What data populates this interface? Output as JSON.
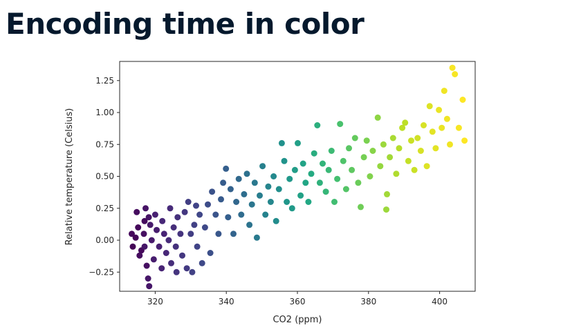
{
  "slide": {
    "title": "Encoding time in color"
  },
  "chart_data": {
    "type": "scatter",
    "title": "",
    "xlabel": "CO2 (ppm)",
    "ylabel": "Relative temperature (Celsius)",
    "xlim": [
      310,
      410
    ],
    "ylim": [
      -0.4,
      1.4
    ],
    "xticks": [
      320,
      340,
      360,
      380,
      400
    ],
    "yticks": [
      -0.25,
      0.0,
      0.25,
      0.5,
      0.75,
      1.0,
      1.25
    ],
    "grid": false,
    "legend": "none",
    "color_encoding": "time (viridis colormap, dark purple = earliest, yellow = latest)",
    "colormap": [
      "#440154",
      "#482475",
      "#414487",
      "#355f8d",
      "#2a788e",
      "#21918c",
      "#22a884",
      "#44bf70",
      "#7ad151",
      "#bddf26",
      "#fde725"
    ],
    "series": [
      {
        "points": [
          {
            "x": 313.7,
            "y": -0.05,
            "t": 0.01
          },
          {
            "x": 314.5,
            "y": 0.02,
            "t": 0.01
          },
          {
            "x": 315.2,
            "y": 0.1,
            "t": 0.02
          },
          {
            "x": 313.4,
            "y": 0.05,
            "t": 0.02
          },
          {
            "x": 316.1,
            "y": -0.08,
            "t": 0.02
          },
          {
            "x": 317.0,
            "y": 0.15,
            "t": 0.03
          },
          {
            "x": 315.6,
            "y": -0.12,
            "t": 0.03
          },
          {
            "x": 314.8,
            "y": 0.22,
            "t": 0.03
          },
          {
            "x": 316.8,
            "y": 0.05,
            "t": 0.04
          },
          {
            "x": 317.6,
            "y": -0.2,
            "t": 0.04
          },
          {
            "x": 318.2,
            "y": 0.18,
            "t": 0.05
          },
          {
            "x": 317.3,
            "y": 0.25,
            "t": 0.05
          },
          {
            "x": 318.0,
            "y": -0.3,
            "t": 0.06
          },
          {
            "x": 318.3,
            "y": -0.36,
            "t": 0.06
          },
          {
            "x": 317.0,
            "y": -0.05,
            "t": 0.06
          },
          {
            "x": 319.0,
            "y": 0.0,
            "t": 0.07
          },
          {
            "x": 318.6,
            "y": 0.12,
            "t": 0.07
          },
          {
            "x": 319.6,
            "y": -0.15,
            "t": 0.08
          },
          {
            "x": 320.4,
            "y": 0.08,
            "t": 0.08
          },
          {
            "x": 321.1,
            "y": -0.05,
            "t": 0.09
          },
          {
            "x": 320.0,
            "y": 0.2,
            "t": 0.09
          },
          {
            "x": 321.8,
            "y": -0.22,
            "t": 0.1
          },
          {
            "x": 322.5,
            "y": 0.05,
            "t": 0.1
          },
          {
            "x": 322.0,
            "y": 0.15,
            "t": 0.11
          },
          {
            "x": 323.1,
            "y": -0.1,
            "t": 0.11
          },
          {
            "x": 323.8,
            "y": 0.0,
            "t": 0.12
          },
          {
            "x": 324.2,
            "y": 0.25,
            "t": 0.12
          },
          {
            "x": 324.5,
            "y": -0.18,
            "t": 0.13
          },
          {
            "x": 325.2,
            "y": 0.1,
            "t": 0.13
          },
          {
            "x": 325.8,
            "y": -0.05,
            "t": 0.14
          },
          {
            "x": 326.3,
            "y": 0.18,
            "t": 0.14
          },
          {
            "x": 326.0,
            "y": -0.25,
            "t": 0.15
          },
          {
            "x": 327.1,
            "y": 0.05,
            "t": 0.15
          },
          {
            "x": 327.6,
            "y": -0.12,
            "t": 0.16
          },
          {
            "x": 328.3,
            "y": 0.22,
            "t": 0.16
          },
          {
            "x": 328.9,
            "y": -0.22,
            "t": 0.17
          },
          {
            "x": 329.3,
            "y": 0.3,
            "t": 0.18
          },
          {
            "x": 330.0,
            "y": 0.05,
            "t": 0.18
          },
          {
            "x": 330.4,
            "y": -0.25,
            "t": 0.19
          },
          {
            "x": 331.0,
            "y": 0.12,
            "t": 0.19
          },
          {
            "x": 331.5,
            "y": 0.27,
            "t": 0.2
          },
          {
            "x": 331.8,
            "y": -0.05,
            "t": 0.2
          },
          {
            "x": 332.5,
            "y": 0.2,
            "t": 0.21
          },
          {
            "x": 333.2,
            "y": -0.18,
            "t": 0.22
          },
          {
            "x": 334.0,
            "y": 0.1,
            "t": 0.22
          },
          {
            "x": 334.8,
            "y": 0.28,
            "t": 0.23
          },
          {
            "x": 335.5,
            "y": -0.1,
            "t": 0.24
          },
          {
            "x": 336.0,
            "y": 0.38,
            "t": 0.25
          },
          {
            "x": 337.0,
            "y": 0.2,
            "t": 0.26
          },
          {
            "x": 337.8,
            "y": 0.05,
            "t": 0.27
          },
          {
            "x": 338.5,
            "y": 0.32,
            "t": 0.28
          },
          {
            "x": 339.1,
            "y": 0.45,
            "t": 0.29
          },
          {
            "x": 339.9,
            "y": 0.56,
            "t": 0.3
          },
          {
            "x": 340.5,
            "y": 0.18,
            "t": 0.3
          },
          {
            "x": 341.2,
            "y": 0.4,
            "t": 0.31
          },
          {
            "x": 342.0,
            "y": 0.05,
            "t": 0.32
          },
          {
            "x": 342.8,
            "y": 0.3,
            "t": 0.33
          },
          {
            "x": 343.5,
            "y": 0.48,
            "t": 0.34
          },
          {
            "x": 344.2,
            "y": 0.2,
            "t": 0.35
          },
          {
            "x": 345.0,
            "y": 0.36,
            "t": 0.36
          },
          {
            "x": 345.8,
            "y": 0.52,
            "t": 0.37
          },
          {
            "x": 346.5,
            "y": 0.12,
            "t": 0.38
          },
          {
            "x": 347.2,
            "y": 0.28,
            "t": 0.39
          },
          {
            "x": 348.0,
            "y": 0.45,
            "t": 0.4
          },
          {
            "x": 348.6,
            "y": 0.02,
            "t": 0.41
          },
          {
            "x": 349.4,
            "y": 0.35,
            "t": 0.42
          },
          {
            "x": 350.2,
            "y": 0.58,
            "t": 0.43
          },
          {
            "x": 351.0,
            "y": 0.2,
            "t": 0.44
          },
          {
            "x": 351.8,
            "y": 0.42,
            "t": 0.45
          },
          {
            "x": 352.5,
            "y": 0.3,
            "t": 0.46
          },
          {
            "x": 353.3,
            "y": 0.5,
            "t": 0.47
          },
          {
            "x": 354.0,
            "y": 0.15,
            "t": 0.48
          },
          {
            "x": 354.8,
            "y": 0.4,
            "t": 0.49
          },
          {
            "x": 355.6,
            "y": 0.76,
            "t": 0.5
          },
          {
            "x": 356.3,
            "y": 0.62,
            "t": 0.51
          },
          {
            "x": 357.0,
            "y": 0.3,
            "t": 0.52
          },
          {
            "x": 357.8,
            "y": 0.48,
            "t": 0.53
          },
          {
            "x": 358.5,
            "y": 0.25,
            "t": 0.54
          },
          {
            "x": 359.3,
            "y": 0.55,
            "t": 0.55
          },
          {
            "x": 360.1,
            "y": 0.76,
            "t": 0.56
          },
          {
            "x": 360.9,
            "y": 0.35,
            "t": 0.57
          },
          {
            "x": 361.6,
            "y": 0.6,
            "t": 0.58
          },
          {
            "x": 362.3,
            "y": 0.45,
            "t": 0.59
          },
          {
            "x": 363.1,
            "y": 0.3,
            "t": 0.6
          },
          {
            "x": 363.9,
            "y": 0.52,
            "t": 0.61
          },
          {
            "x": 364.7,
            "y": 0.68,
            "t": 0.62
          },
          {
            "x": 365.6,
            "y": 0.9,
            "t": 0.63
          },
          {
            "x": 366.3,
            "y": 0.45,
            "t": 0.64
          },
          {
            "x": 367.1,
            "y": 0.6,
            "t": 0.65
          },
          {
            "x": 368.0,
            "y": 0.38,
            "t": 0.66
          },
          {
            "x": 368.8,
            "y": 0.55,
            "t": 0.67
          },
          {
            "x": 369.6,
            "y": 0.7,
            "t": 0.68
          },
          {
            "x": 370.4,
            "y": 0.3,
            "t": 0.69
          },
          {
            "x": 371.2,
            "y": 0.48,
            "t": 0.7
          },
          {
            "x": 372.0,
            "y": 0.91,
            "t": 0.71
          },
          {
            "x": 372.9,
            "y": 0.62,
            "t": 0.72
          },
          {
            "x": 373.7,
            "y": 0.4,
            "t": 0.73
          },
          {
            "x": 374.5,
            "y": 0.72,
            "t": 0.74
          },
          {
            "x": 375.3,
            "y": 0.55,
            "t": 0.75
          },
          {
            "x": 376.2,
            "y": 0.8,
            "t": 0.76
          },
          {
            "x": 377.1,
            "y": 0.45,
            "t": 0.77
          },
          {
            "x": 377.8,
            "y": 0.26,
            "t": 0.78
          },
          {
            "x": 378.7,
            "y": 0.65,
            "t": 0.79
          },
          {
            "x": 379.5,
            "y": 0.78,
            "t": 0.8
          },
          {
            "x": 380.4,
            "y": 0.5,
            "t": 0.81
          },
          {
            "x": 381.2,
            "y": 0.7,
            "t": 0.82
          },
          {
            "x": 382.6,
            "y": 0.96,
            "t": 0.83
          },
          {
            "x": 383.3,
            "y": 0.58,
            "t": 0.84
          },
          {
            "x": 384.2,
            "y": 0.75,
            "t": 0.85
          },
          {
            "x": 385.0,
            "y": 0.24,
            "t": 0.85
          },
          {
            "x": 385.2,
            "y": 0.36,
            "t": 0.86
          },
          {
            "x": 386.0,
            "y": 0.65,
            "t": 0.86
          },
          {
            "x": 386.9,
            "y": 0.8,
            "t": 0.87
          },
          {
            "x": 387.8,
            "y": 0.52,
            "t": 0.88
          },
          {
            "x": 388.6,
            "y": 0.72,
            "t": 0.89
          },
          {
            "x": 389.5,
            "y": 0.88,
            "t": 0.9
          },
          {
            "x": 390.3,
            "y": 0.92,
            "t": 0.9
          },
          {
            "x": 391.2,
            "y": 0.62,
            "t": 0.91
          },
          {
            "x": 392.0,
            "y": 0.78,
            "t": 0.92
          },
          {
            "x": 392.9,
            "y": 0.55,
            "t": 0.92
          },
          {
            "x": 393.8,
            "y": 0.8,
            "t": 0.93
          },
          {
            "x": 394.7,
            "y": 0.7,
            "t": 0.94
          },
          {
            "x": 395.5,
            "y": 0.9,
            "t": 0.94
          },
          {
            "x": 396.4,
            "y": 0.58,
            "t": 0.95
          },
          {
            "x": 397.2,
            "y": 1.05,
            "t": 0.95
          },
          {
            "x": 398.0,
            "y": 0.85,
            "t": 0.96
          },
          {
            "x": 398.9,
            "y": 0.72,
            "t": 0.96
          },
          {
            "x": 399.8,
            "y": 1.02,
            "t": 0.97
          },
          {
            "x": 400.6,
            "y": 0.88,
            "t": 0.97
          },
          {
            "x": 401.3,
            "y": 1.17,
            "t": 0.98
          },
          {
            "x": 402.1,
            "y": 0.95,
            "t": 0.98
          },
          {
            "x": 402.9,
            "y": 0.75,
            "t": 0.98
          },
          {
            "x": 403.6,
            "y": 1.35,
            "t": 0.99
          },
          {
            "x": 404.3,
            "y": 1.3,
            "t": 0.99
          },
          {
            "x": 405.4,
            "y": 0.88,
            "t": 0.99
          },
          {
            "x": 406.5,
            "y": 1.1,
            "t": 1.0
          },
          {
            "x": 407.0,
            "y": 0.78,
            "t": 1.0
          }
        ]
      }
    ]
  }
}
